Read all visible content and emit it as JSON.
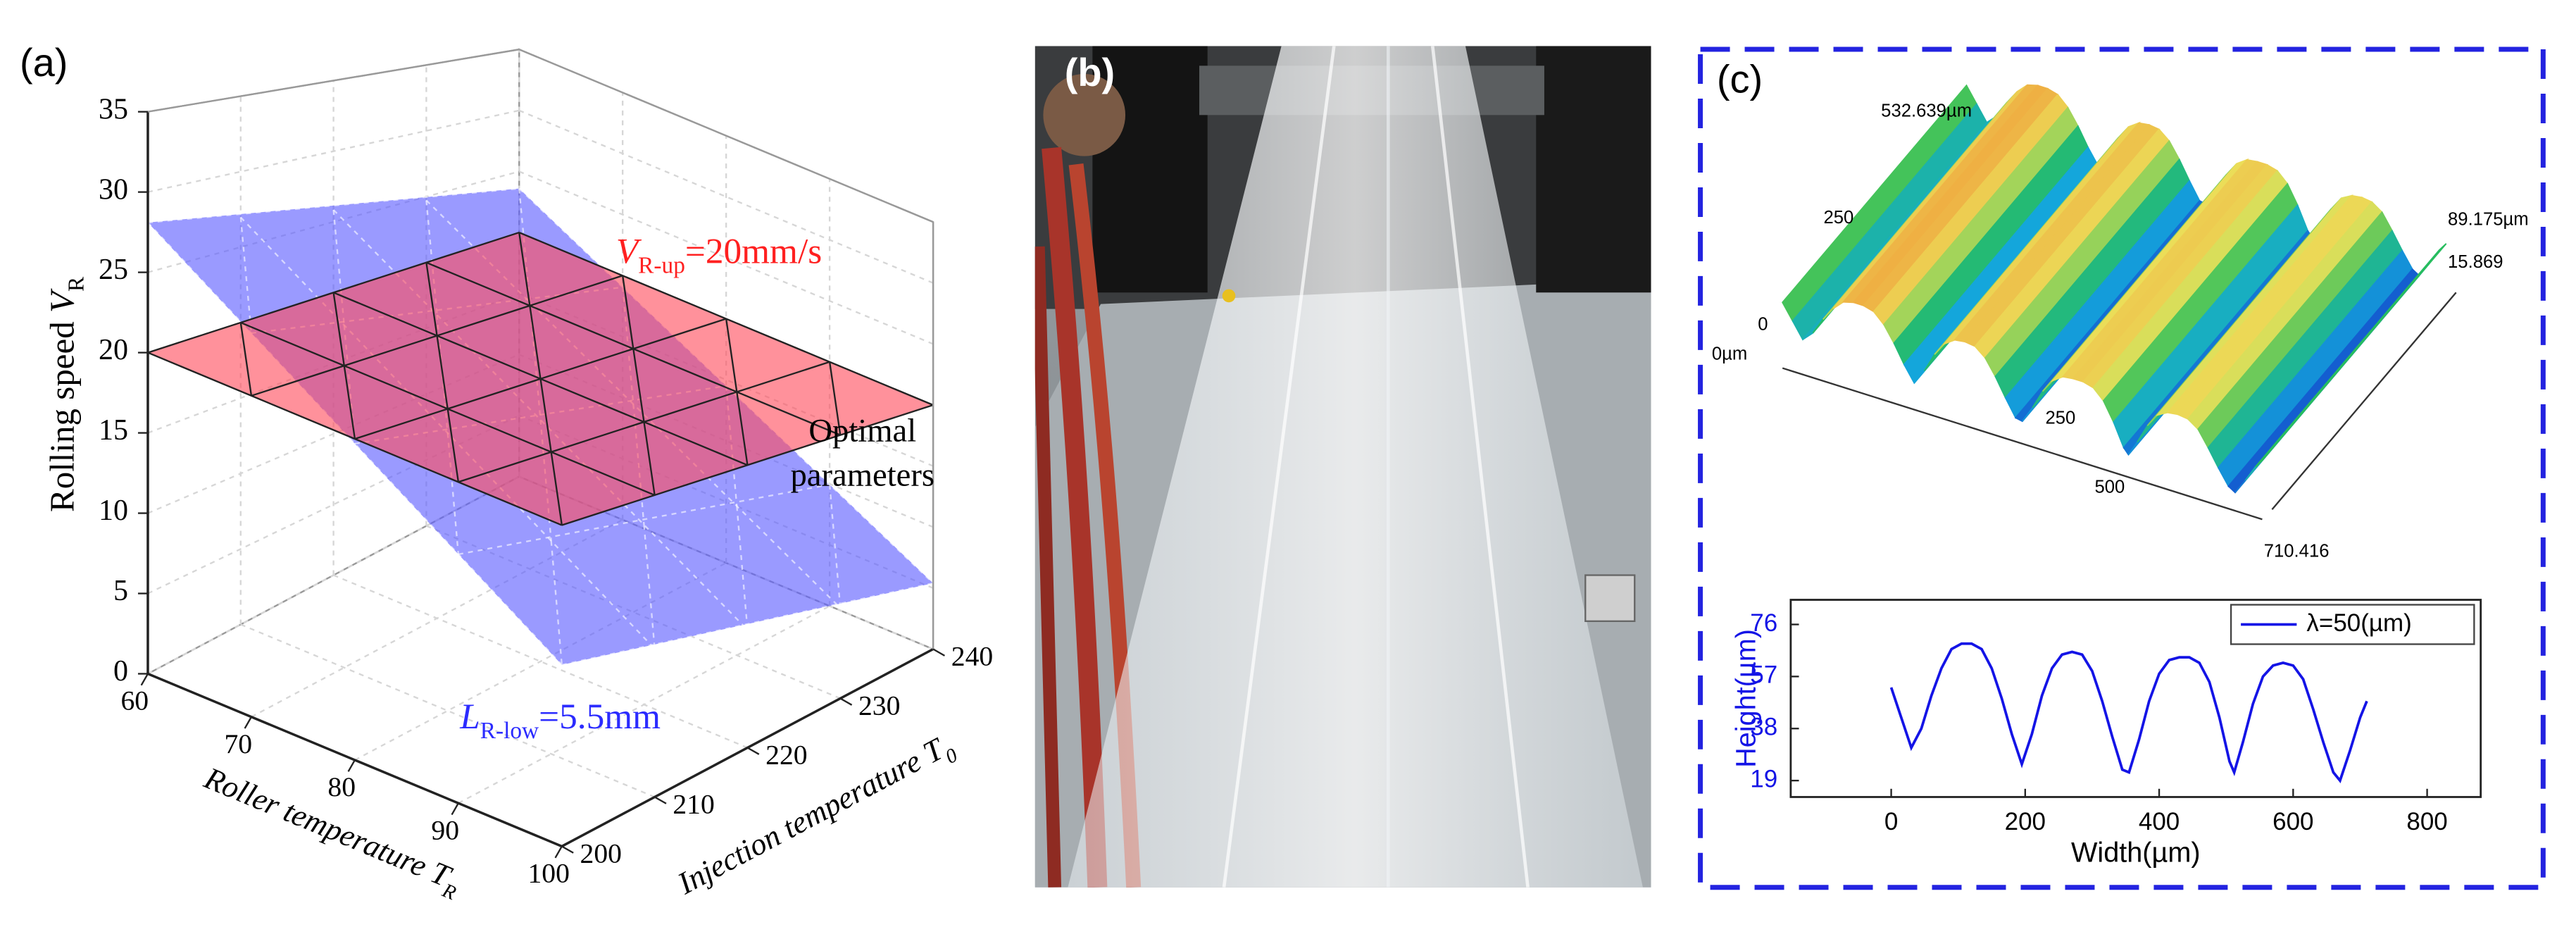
{
  "panel_labels": [
    "(a)",
    "(b)",
    "(c)"
  ],
  "surface_labels": [
    "532.639µm",
    "250",
    "0",
    "0µm",
    "250",
    "500",
    "710.416",
    "89.175µm",
    "15.869"
  ],
  "chart_data": [
    {
      "type": "plane3d",
      "xlabel": {
        "text": "Roller temperature ",
        "symbol": "T",
        "sub": "R"
      },
      "ylabel": {
        "text": "Injection temperature ",
        "symbol": "T",
        "sub": "0"
      },
      "zlabel": {
        "text": "Rolling speed ",
        "symbol": "V",
        "sub": "R"
      },
      "xlim": [
        60,
        100
      ],
      "xticks": [
        60,
        70,
        80,
        90,
        100
      ],
      "ylim": [
        200,
        240
      ],
      "yticks": [
        200,
        210,
        220,
        230,
        240
      ],
      "zlim": [
        0,
        35
      ],
      "zticks": [
        0,
        5,
        10,
        15,
        20,
        25,
        30,
        35
      ],
      "grid": true,
      "series": [
        {
          "color": "#ff4d5e",
          "values": [
            20,
            20,
            20,
            20
          ]
        },
        {
          "color": "#5c5cff",
          "values": [
            28.1,
            23.6,
            5.4,
            11.3
          ]
        }
      ],
      "annotations": [
        {
          "symbol": "V",
          "sub": "R-up",
          "text": "=20mm/s",
          "color": "#ff2020"
        },
        {
          "symbol": "L",
          "sub": "R-low",
          "text": "=5.5mm",
          "color": "#2b2bff"
        },
        {
          "lines": [
            "Optimal",
            "parameters"
          ]
        }
      ]
    },
    {
      "type": "line",
      "xlabel": "Width(µm)",
      "ylabel": "Height(µm)",
      "x": [
        0,
        15,
        30,
        45,
        60,
        75,
        90,
        105,
        120,
        135,
        150,
        165,
        180,
        195,
        210,
        225,
        240,
        255,
        270,
        285,
        300,
        315,
        330,
        345,
        355,
        370,
        385,
        400,
        415,
        430,
        445,
        460,
        475,
        490,
        505,
        512,
        525,
        540,
        555,
        570,
        585,
        600,
        615,
        630,
        645,
        660,
        670,
        685,
        700,
        710
      ],
      "series": [
        {
          "name": "λ=50(µm)",
          "color": "#1414e6",
          "values": [
            53,
            42,
            31,
            38,
            50,
            60,
            67,
            69,
            69,
            67,
            60,
            49,
            36,
            25,
            36,
            50,
            60,
            65,
            66,
            65,
            59,
            48,
            35,
            23,
            22,
            34,
            48,
            58,
            63,
            64,
            64,
            62,
            55,
            42,
            26,
            22,
            33,
            47,
            57,
            61,
            62,
            61,
            56,
            45,
            33,
            22,
            19,
            30,
            42,
            48
          ]
        }
      ],
      "xlim": [
        -150,
        880
      ],
      "xticks": [
        0,
        200,
        400,
        600,
        800
      ],
      "ylim": [
        13,
        85
      ],
      "yticks": [
        19,
        38,
        57,
        76
      ],
      "ytick_color": "#1414e6",
      "legend": "upper right"
    }
  ]
}
